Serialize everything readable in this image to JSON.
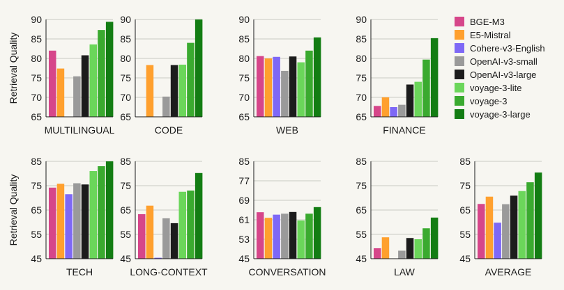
{
  "chart_data": {
    "type": "bar",
    "ylabel": "Retrieval Quality",
    "grid": true,
    "legend_position": "top-right",
    "series": [
      {
        "name": "BGE-M3",
        "color": "#d6468a"
      },
      {
        "name": "E5-Mistral",
        "color": "#ffa02e"
      },
      {
        "name": "Cohere-v3-English",
        "color": "#7e68f6"
      },
      {
        "name": "OpenAI-v3-small",
        "color": "#9a9a9a"
      },
      {
        "name": "OpenAI-v3-large",
        "color": "#1c1c1c"
      },
      {
        "name": "voyage-3-lite",
        "color": "#6bd65a"
      },
      {
        "name": "voyage-3",
        "color": "#3aaa2f"
      },
      {
        "name": "voyage-3-large",
        "color": "#137d13"
      }
    ],
    "panels": [
      {
        "title": "MULTILINGUAL",
        "ylim": [
          65,
          90
        ],
        "ticks": [
          "65",
          "70",
          "75",
          "80",
          "85",
          "90"
        ],
        "values": [
          82.0,
          77.4,
          null,
          75.4,
          80.8,
          83.6,
          87.3,
          89.4
        ]
      },
      {
        "title": "CODE",
        "ylim": [
          65,
          90
        ],
        "ticks": [
          "65",
          "70",
          "75",
          "80",
          "85",
          "90"
        ],
        "values": [
          null,
          78.3,
          null,
          70.2,
          78.3,
          78.4,
          84.0,
          90.0
        ]
      },
      {
        "title": "WEB",
        "ylim": [
          65,
          90
        ],
        "ticks": [
          "65",
          "70",
          "75",
          "80",
          "85",
          "90"
        ],
        "values": [
          80.6,
          80.0,
          80.4,
          76.8,
          80.5,
          79.0,
          82.0,
          85.4
        ]
      },
      {
        "title": "FINANCE",
        "ylim": [
          65,
          90
        ],
        "ticks": [
          "65",
          "70",
          "75",
          "80",
          "85",
          "90"
        ],
        "values": [
          67.8,
          70.0,
          67.5,
          68.1,
          73.3,
          74.0,
          79.7,
          85.2
        ]
      },
      {
        "title": "TECH",
        "ylim": [
          45,
          85
        ],
        "ticks": [
          "45",
          "55",
          "65",
          "75",
          "85"
        ],
        "values": [
          74.2,
          75.8,
          71.5,
          76.0,
          75.5,
          81.0,
          83.0,
          85.0
        ]
      },
      {
        "title": "LONG-CONTEXT",
        "ylim": [
          45,
          85
        ],
        "ticks": [
          "45",
          "55",
          "65",
          "75",
          "85"
        ],
        "values": [
          63.3,
          66.8,
          45.4,
          61.6,
          59.6,
          72.5,
          73.0,
          80.2
        ]
      },
      {
        "title": "CONVERSATION",
        "ylim": [
          45,
          85
        ],
        "ticks": [
          "45",
          "53",
          "61",
          "69",
          "77",
          "85"
        ],
        "values": [
          64.1,
          61.8,
          63.1,
          63.5,
          64.2,
          60.7,
          63.5,
          66.2
        ]
      },
      {
        "title": "LAW",
        "ylim": [
          45,
          85
        ],
        "ticks": [
          "45",
          "55",
          "65",
          "75",
          "85"
        ],
        "values": [
          49.3,
          53.8,
          null,
          48.3,
          53.5,
          53.0,
          57.5,
          61.9
        ]
      },
      {
        "title": "AVERAGE",
        "ylim": [
          45,
          85
        ],
        "ticks": [
          "45",
          "55",
          "65",
          "75",
          "85"
        ],
        "values": [
          67.5,
          70.5,
          59.8,
          67.4,
          70.9,
          72.8,
          76.4,
          80.4
        ]
      }
    ]
  }
}
